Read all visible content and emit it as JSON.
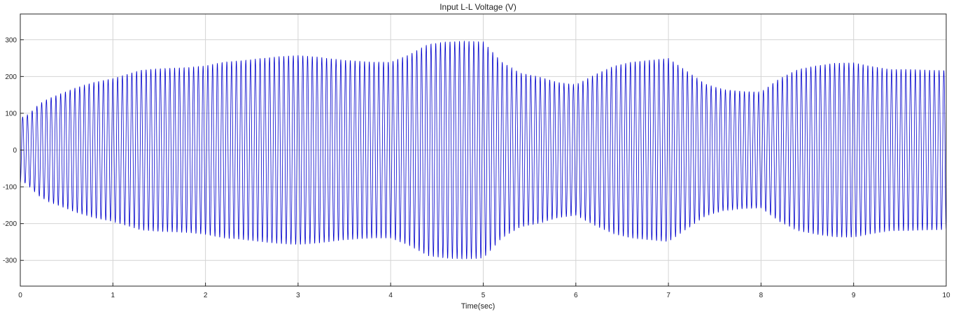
{
  "chart_data": {
    "type": "line",
    "title": "Input L-L Voltage (V)",
    "xlabel": "Time(sec)",
    "ylabel": "",
    "xlim": [
      0,
      10
    ],
    "ylim": [
      -370,
      370
    ],
    "xticks": [
      0,
      1,
      2,
      3,
      4,
      5,
      6,
      7,
      8,
      9,
      10
    ],
    "yticks": [
      300,
      200,
      100,
      0,
      -100,
      -200,
      -300
    ],
    "grid": true,
    "line_color": "#0000cc",
    "waveform": "oscillating sinusoid; amplitude envelope points",
    "envelope": {
      "t": [
        0,
        0.05,
        0.1,
        0.2,
        0.3,
        0.4,
        0.5,
        0.6,
        0.8,
        1.0,
        1.2,
        1.3,
        1.5,
        1.8,
        2.0,
        2.2,
        2.4,
        2.6,
        2.8,
        3.0,
        3.2,
        3.5,
        3.8,
        4.0,
        4.2,
        4.4,
        4.6,
        4.8,
        5.0,
        5.2,
        5.4,
        5.6,
        5.8,
        6.0,
        6.2,
        6.4,
        6.6,
        6.8,
        7.0,
        7.2,
        7.4,
        7.6,
        7.8,
        8.0,
        8.2,
        8.4,
        8.6,
        8.8,
        9.0,
        9.2,
        9.4,
        9.6,
        9.8,
        10.0
      ],
      "amplitude": [
        90,
        90,
        100,
        125,
        140,
        150,
        160,
        170,
        185,
        195,
        210,
        218,
        222,
        225,
        230,
        240,
        244,
        250,
        255,
        258,
        254,
        245,
        240,
        240,
        260,
        288,
        295,
        297,
        295,
        240,
        210,
        200,
        185,
        178,
        205,
        228,
        240,
        245,
        250,
        215,
        180,
        165,
        160,
        158,
        195,
        220,
        230,
        237,
        238,
        228,
        220,
        220,
        218,
        217
      ]
    },
    "cycles": 195
  }
}
